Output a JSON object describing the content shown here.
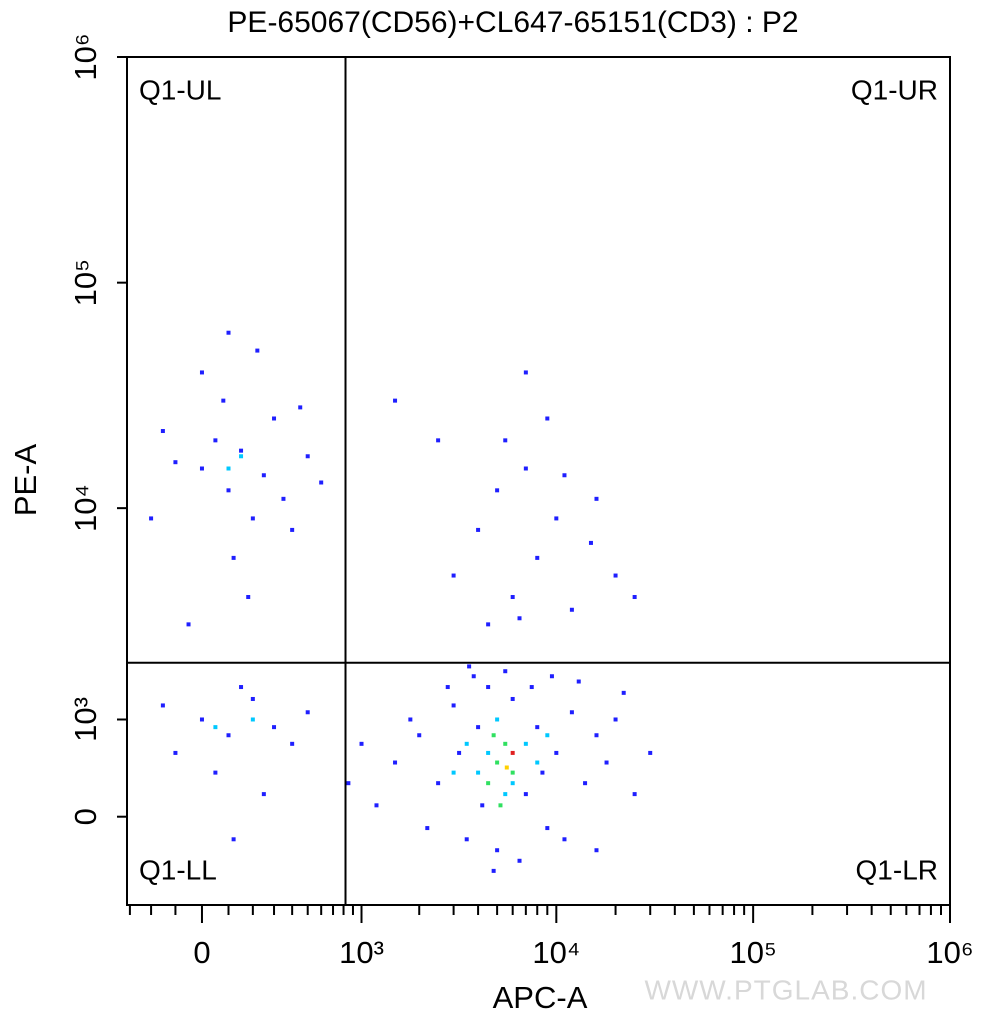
{
  "chart_data": {
    "type": "scatter",
    "title": "PE-65067(CD56)+CL647-65151(CD3) : P2",
    "xlabel": "APC-A",
    "ylabel": "PE-A",
    "xscale": "biexponential",
    "yscale": "biexponential",
    "xlim": [
      -315,
      1000000
    ],
    "ylim": [
      -884,
      1000000
    ],
    "xticks": [
      0,
      {
        "value": 1000,
        "label": "10³"
      },
      {
        "value": 10000,
        "label": "10⁴"
      },
      {
        "value": 100000,
        "label": "10⁵"
      },
      {
        "value": 1000000,
        "label": "10⁶"
      }
    ],
    "xminorticks": [
      -300,
      -200,
      -100,
      100,
      200,
      300,
      400,
      500,
      600,
      700,
      800,
      900,
      2000,
      3000,
      4000,
      5000,
      6000,
      7000,
      8000,
      9000,
      20000,
      30000,
      40000,
      50000,
      60000,
      70000,
      80000,
      90000,
      200000,
      300000,
      400000,
      500000,
      600000,
      700000,
      800000,
      900000
    ],
    "yticks": [
      0,
      {
        "value": 1000,
        "label": "10³"
      },
      {
        "value": 10000,
        "label": "10⁴"
      },
      {
        "value": 100000,
        "label": "10⁵"
      },
      {
        "value": 1000000,
        "label": "10⁶"
      }
    ],
    "gates": {
      "x": 820,
      "y": 1980
    },
    "quadrants": {
      "ul": "Q1-UL",
      "ur": "Q1-UR",
      "ll": "Q1-LL",
      "lr": "Q1-LR"
    },
    "watermark": "WWW.PTGLAB.COM",
    "series": [
      {
        "color": "#1f1fff",
        "x": [
          2000,
          2500,
          3000,
          3500,
          4000,
          4500,
          5000,
          6000,
          7000,
          8000,
          9000,
          10000,
          12000,
          14000,
          16000,
          1500,
          1800,
          2200,
          3200,
          3800,
          4200,
          5500,
          6500,
          7500,
          8500,
          11000,
          13000,
          18000,
          20000,
          25000,
          30000,
          2800,
          4800,
          9500,
          1200,
          1000,
          850,
          16000,
          22000,
          3600,
          0,
          50,
          100,
          150,
          200,
          -100,
          -150,
          250,
          300,
          400,
          500,
          80,
          120,
          180,
          -50,
          350,
          450,
          0,
          100,
          220,
          -200,
          600,
          0,
          100,
          200,
          -100,
          300,
          150,
          50,
          250,
          -150,
          400,
          120,
          500,
          3000,
          4000,
          5000,
          6000,
          7000,
          8000,
          10000,
          12000,
          15000,
          5500,
          4500,
          9000,
          20000,
          2500,
          7000,
          6500,
          11000,
          16000,
          1500,
          25000
        ],
        "values": [
          800,
          300,
          1200,
          -200,
          900,
          1500,
          -300,
          1300,
          200,
          900,
          -100,
          600,
          1100,
          300,
          800,
          500,
          1000,
          -100,
          600,
          1700,
          100,
          1800,
          -400,
          1500,
          400,
          -200,
          1600,
          500,
          1000,
          200,
          600,
          1500,
          -500,
          1700,
          100,
          700,
          300,
          -300,
          1400,
          1900,
          15000,
          20000,
          12000,
          18000,
          9000,
          16000,
          22000,
          14000,
          25000,
          8000,
          17000,
          30000,
          6000,
          4000,
          3000,
          11000,
          28000,
          40000,
          60000,
          50000,
          9000,
          13000,
          1000,
          800,
          1300,
          600,
          900,
          1500,
          400,
          200,
          1200,
          700,
          -200,
          1100,
          5000,
          8000,
          12000,
          4000,
          15000,
          6000,
          9000,
          3500,
          7000,
          20000,
          3000,
          25000,
          5000,
          20000,
          40000,
          3200,
          14000,
          11000,
          30000,
          4000
        ]
      },
      {
        "color": "#00c8ff",
        "x": [
          3500,
          4000,
          4500,
          5000,
          6000,
          7000,
          8000,
          5500,
          3000,
          9000,
          100,
          150,
          200,
          50
        ],
        "values": [
          700,
          400,
          600,
          1000,
          300,
          700,
          500,
          200,
          400,
          800,
          15000,
          17000,
          1000,
          900
        ]
      },
      {
        "color": "#30e060",
        "x": [
          4500,
          5000,
          5500,
          6000,
          4800,
          5200
        ],
        "values": [
          300,
          500,
          700,
          400,
          800,
          100
        ]
      },
      {
        "color": "#ffd000",
        "x": [
          5600
        ],
        "values": [
          450
        ]
      },
      {
        "color": "#e02020",
        "x": [
          6000
        ],
        "values": [
          600
        ]
      }
    ]
  }
}
